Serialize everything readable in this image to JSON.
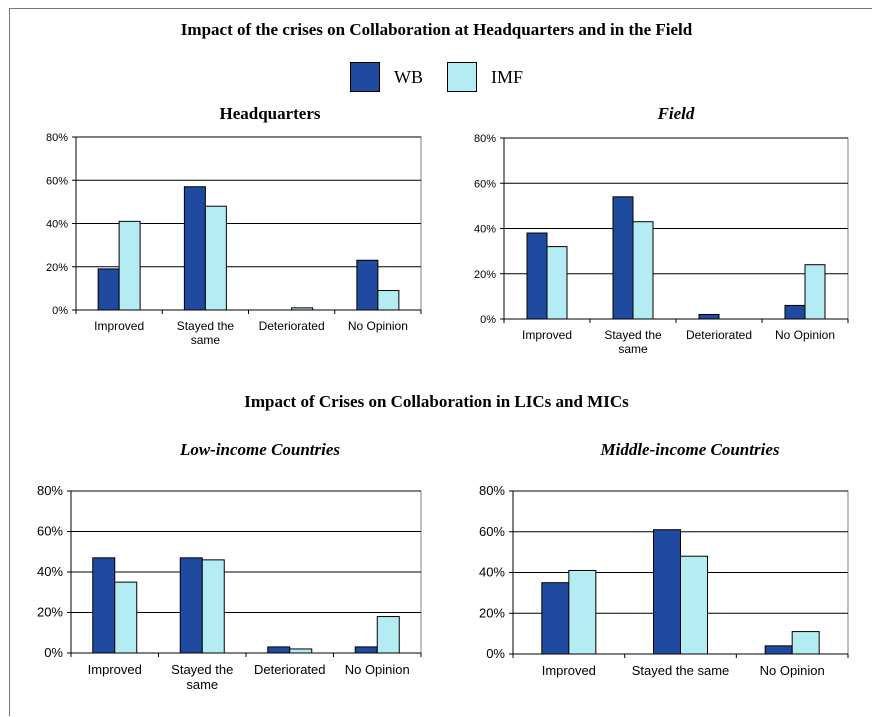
{
  "title": "Impact of the crises on Collaboration at Headquarters and in the Field",
  "subtitle": "Impact of Crises on Collaboration in LICs and MICs",
  "legend": [
    {
      "name": "WB",
      "color": "#1f4aa0"
    },
    {
      "name": "IMF",
      "color": "#b3ecf3"
    }
  ],
  "chart_data": [
    {
      "type": "bar",
      "title": "Headquarters",
      "categories": [
        "Improved",
        "Stayed the same",
        "Deteriorated",
        "No Opinion"
      ],
      "series": [
        {
          "name": "WB",
          "values": [
            19,
            57,
            0,
            23
          ]
        },
        {
          "name": "IMF",
          "values": [
            41,
            48,
            1,
            9
          ]
        }
      ],
      "yticks": [
        "0%",
        "20%",
        "40%",
        "60%",
        "80%"
      ],
      "ylim": [
        0,
        80
      ],
      "grid": true,
      "legend": "top-center"
    },
    {
      "type": "bar",
      "title": "Field",
      "categories": [
        "Improved",
        "Stayed the same",
        "Deteriorated",
        "No Opinion"
      ],
      "series": [
        {
          "name": "WB",
          "values": [
            38,
            54,
            2,
            6
          ]
        },
        {
          "name": "IMF",
          "values": [
            32,
            43,
            0,
            24
          ]
        }
      ],
      "yticks": [
        "0%",
        "20%",
        "40%",
        "60%",
        "80%"
      ],
      "ylim": [
        0,
        80
      ],
      "grid": true,
      "legend": "top-center"
    },
    {
      "type": "bar",
      "title": "Low-income Countries",
      "categories": [
        "Improved",
        "Stayed the same",
        "Deteriorated",
        "No Opinion"
      ],
      "series": [
        {
          "name": "WB",
          "values": [
            47,
            47,
            3,
            3
          ]
        },
        {
          "name": "IMF",
          "values": [
            35,
            46,
            2,
            18
          ]
        }
      ],
      "yticks": [
        "0%",
        "20%",
        "40%",
        "60%",
        "80%"
      ],
      "ylim": [
        0,
        80
      ],
      "grid": true,
      "legend": "top-center"
    },
    {
      "type": "bar",
      "title": "Middle-income Countries",
      "categories": [
        "Improved",
        "Stayed the same",
        "No Opinion"
      ],
      "series": [
        {
          "name": "WB",
          "values": [
            35,
            61,
            4
          ]
        },
        {
          "name": "IMF",
          "values": [
            41,
            48,
            11
          ]
        }
      ],
      "yticks": [
        "0%",
        "20%",
        "40%",
        "60%",
        "80%"
      ],
      "ylim": [
        0,
        80
      ],
      "grid": true,
      "legend": "top-center"
    }
  ]
}
